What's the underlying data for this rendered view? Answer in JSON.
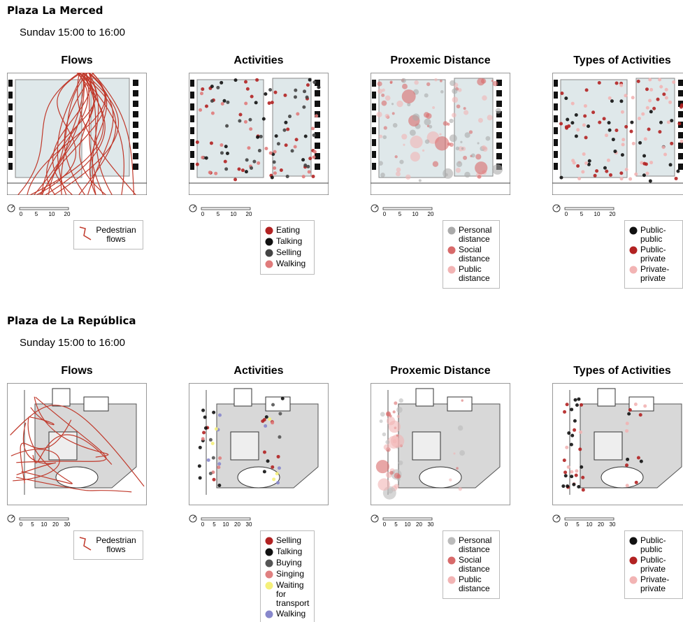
{
  "sections": [
    {
      "title": "Plaza La Merced",
      "subtitle": "Sundav 15:00 to 16:00",
      "scale_labels": [
        "0",
        "5",
        "10",
        "20"
      ],
      "panels": [
        {
          "title": "Flows",
          "legend": [
            {
              "label": "Pedestrian flows",
              "color": "#c0392b",
              "marker": "line"
            }
          ]
        },
        {
          "title": "Activities",
          "legend": [
            {
              "label": "Eating",
              "color": "#b22222"
            },
            {
              "label": "Talking",
              "color": "#111111"
            },
            {
              "label": "Selling",
              "color": "#444444"
            },
            {
              "label": "Walking",
              "color": "#e07b7b"
            }
          ]
        },
        {
          "title": "Proxemic Distance",
          "legend": [
            {
              "label": "Personal distance",
              "color": "#aaaaaa"
            },
            {
              "label": "Social distance",
              "color": "#d86a6a"
            },
            {
              "label": "Public distance",
              "color": "#f2b4b4"
            }
          ]
        },
        {
          "title": "Types of Activities",
          "legend": [
            {
              "label": "Public-public",
              "color": "#111111"
            },
            {
              "label": "Public-private",
              "color": "#b22222"
            },
            {
              "label": "Private-private",
              "color": "#f2b4b4"
            }
          ]
        }
      ]
    },
    {
      "title": "Plaza de La República",
      "subtitle": "Sunday 15:00 to 16:00",
      "scale_labels": [
        "0",
        "5",
        "10",
        "20",
        "30"
      ],
      "panels": [
        {
          "title": "Flows",
          "legend": [
            {
              "label": "Pedestrian flows",
              "color": "#c0392b",
              "marker": "line"
            }
          ]
        },
        {
          "title": "Activities",
          "legend": [
            {
              "label": "Selling",
              "color": "#b22222"
            },
            {
              "label": "Talking",
              "color": "#111111"
            },
            {
              "label": "Buying",
              "color": "#555555"
            },
            {
              "label": "Singing",
              "color": "#e08080"
            },
            {
              "label": "Waiting for transport",
              "color": "#f5f07a"
            },
            {
              "label": "Walking",
              "color": "#8888cc"
            }
          ]
        },
        {
          "title": "Proxemic Distance",
          "legend": [
            {
              "label": "Personal distance",
              "color": "#bbbbbb"
            },
            {
              "label": "Social distance",
              "color": "#d86a6a"
            },
            {
              "label": "Public distance",
              "color": "#f2b4b4"
            }
          ]
        },
        {
          "title": "Types of Activities",
          "legend": [
            {
              "label": "Public-public",
              "color": "#111111"
            },
            {
              "label": "Public-private",
              "color": "#b22222"
            },
            {
              "label": "Private-private",
              "color": "#f2b4b4"
            }
          ]
        }
      ]
    }
  ]
}
